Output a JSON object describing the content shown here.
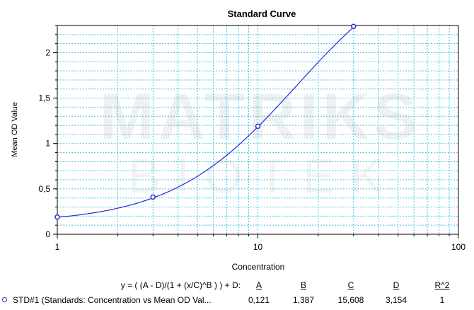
{
  "chart_data": {
    "type": "line",
    "title": "Standard Curve",
    "xlabel": "Concentration",
    "ylabel": "Mean OD Value",
    "xscale": "log",
    "xlim": [
      1,
      100
    ],
    "ylim": [
      0,
      2.3
    ],
    "x_tick_labels": [
      "1",
      "10",
      "100"
    ],
    "y_ticks": [
      {
        "value": 0,
        "label": "0"
      },
      {
        "value": 0.5,
        "label": "0,5"
      },
      {
        "value": 1,
        "label": "1"
      },
      {
        "value": 1.5,
        "label": "1,5"
      },
      {
        "value": 2,
        "label": "2"
      }
    ],
    "grid": true,
    "series": [
      {
        "name": "STD#1 (Standards: Concentration vs Mean OD Val...",
        "color": "#2a2ad4",
        "points": [
          {
            "x": 1,
            "y": 0.19
          },
          {
            "x": 3,
            "y": 0.41
          },
          {
            "x": 10,
            "y": 1.19
          },
          {
            "x": 30,
            "y": 2.29
          }
        ]
      }
    ],
    "fit": {
      "equation": "y = ( (A - D)/(1 + (x/C)^B ) ) + D:",
      "columns": [
        "A",
        "B",
        "C",
        "D",
        "R^2"
      ],
      "values": [
        "0,121",
        "1,387",
        "15,608",
        "3,154",
        "1"
      ],
      "A": 0.121,
      "B": 1.387,
      "C": 15.608,
      "D": 3.154
    }
  },
  "watermark": {
    "line1": "MATRIKS",
    "line2": "BIOTEK"
  }
}
